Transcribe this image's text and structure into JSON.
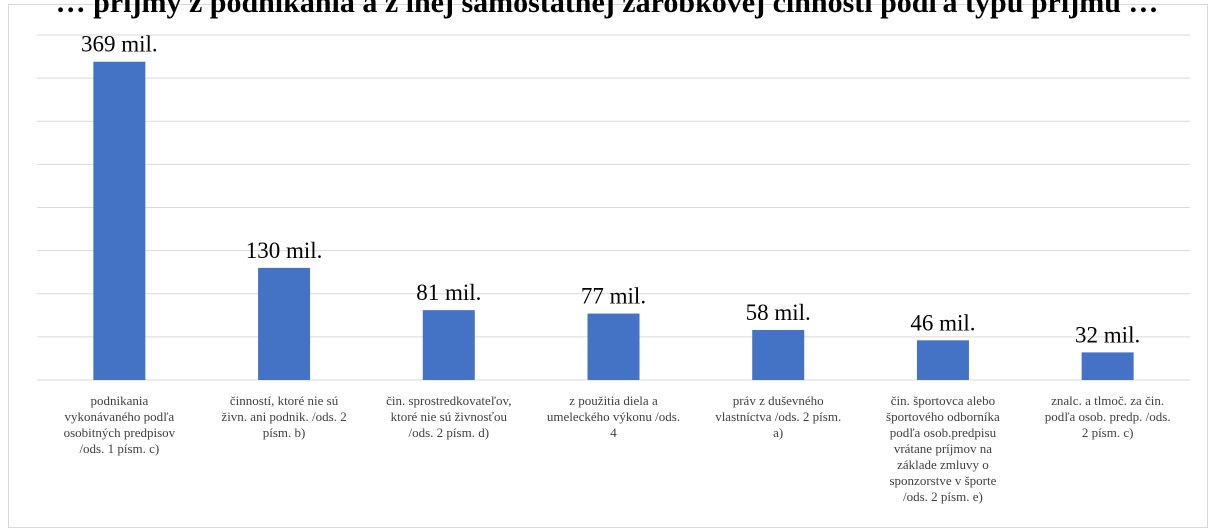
{
  "chart_data": {
    "type": "bar",
    "title": "… príjmy z podnikania a z inej samostatnej zárobkovej činnosti podľa typu príjmu …",
    "categories": [
      [
        "podnikania",
        "vykonávaného podľa",
        "osobitných predpisov",
        "/ods. 1 písm. c)"
      ],
      [
        "činností, ktoré nie sú",
        "živn. ani podnik. /ods. 2",
        "písm. b)"
      ],
      [
        "čin. sprostredkovateľov,",
        "ktoré nie sú živnosťou",
        "/ods. 2 písm. d)"
      ],
      [
        "z použitia diela a",
        "umeleckého výkonu /ods.",
        "4"
      ],
      [
        "práv z duševného",
        "vlastníctva /ods. 2 písm.",
        "a)"
      ],
      [
        "čin. športovca alebo",
        "športového odborníka",
        "podľa osob.predpisu",
        "vrátane príjmov na",
        "základe zmluvy o",
        "sponzorstve v športe",
        "/ods. 2 písm. e)"
      ],
      [
        "znalc. a tlmoč. za čin.",
        "podľa osob. predp. /ods.",
        "2 písm. c)"
      ]
    ],
    "values": [
      369,
      130,
      81,
      77,
      58,
      46,
      32
    ],
    "data_labels": [
      "369 mil.",
      "130 mil.",
      "81 mil.",
      "77 mil.",
      "58 mil.",
      "46 mil.",
      "32 mil."
    ],
    "ylim": [
      0,
      400
    ],
    "y_gridlines": 9,
    "grid": true,
    "legend": "none",
    "bar_color": "#4472c4",
    "xlabel": "",
    "ylabel": ""
  }
}
